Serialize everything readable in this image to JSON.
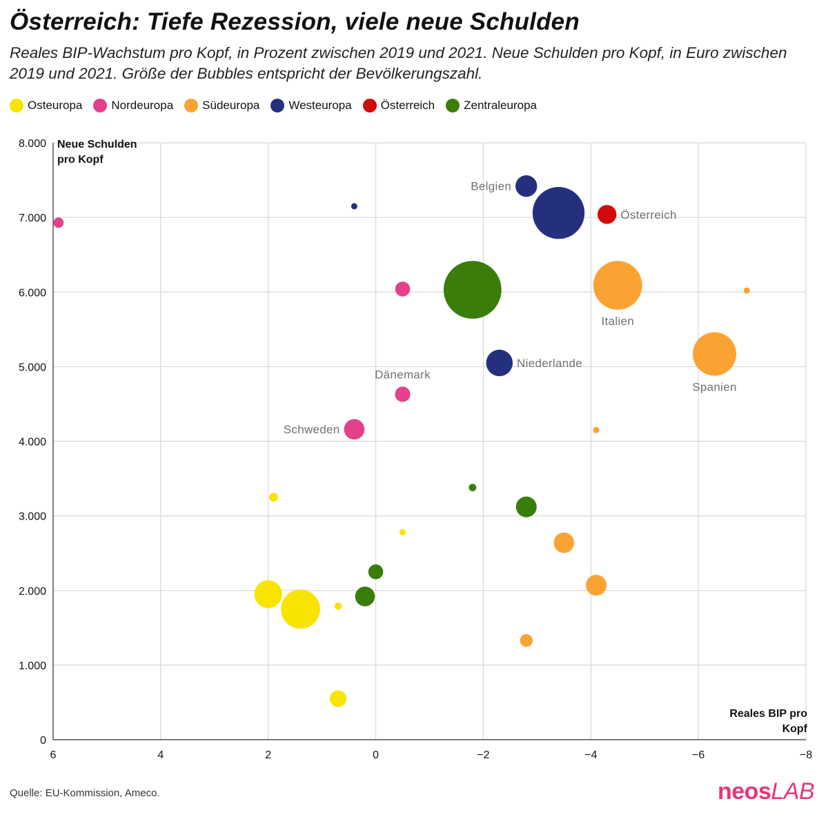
{
  "header": {
    "title": "Österreich: Tiefe Rezession, viele neue Schulden",
    "subtitle": "Reales BIP-Wachstum pro Kopf, in Prozent zwischen 2019 und 2021. Neue Schulden pro Kopf, in Euro zwischen 2019 und 2021. Größe der Bubbles entspricht der Bevölkerungszahl."
  },
  "legend": [
    {
      "name": "Osteuropa",
      "color": "#f7e400"
    },
    {
      "name": "Nordeuropa",
      "color": "#e5408a"
    },
    {
      "name": "Südeuropa",
      "color": "#fba332"
    },
    {
      "name": "Westeuropa",
      "color": "#24307e"
    },
    {
      "name": "Österreich",
      "color": "#d10a0a"
    },
    {
      "name": "Zentraleuropa",
      "color": "#3b7d0b"
    }
  ],
  "footer": {
    "source": "Quelle: EU-Kommission, Ameco.",
    "logo_neos": "neos",
    "logo_lab": "LAB"
  },
  "chart_data": {
    "type": "scatter",
    "title": "Österreich: Tiefe Rezession, viele neue Schulden",
    "xlabel": "Reales BIP pro Kopf",
    "ylabel": "Neue Schulden pro Kopf",
    "xlim": [
      6,
      -8
    ],
    "ylim": [
      0,
      8000
    ],
    "x_reversed": true,
    "x_ticks": [
      6,
      4,
      2,
      0,
      -2,
      -4,
      -6,
      -8
    ],
    "x_tick_labels": [
      "6",
      "4",
      "2",
      "0",
      "−2",
      "−4",
      "−6",
      "−8"
    ],
    "y_ticks": [
      0,
      1000,
      2000,
      3000,
      4000,
      5000,
      6000,
      7000,
      8000
    ],
    "y_tick_labels": [
      "0",
      "1.000",
      "2.000",
      "3.000",
      "4.000",
      "5.000",
      "6.000",
      "7.000",
      "8.000"
    ],
    "grid": true,
    "legend_position": "top-left",
    "size_encoding": "population (relative)",
    "points": [
      {
        "x": 5.9,
        "y": 6930,
        "size": 2.6,
        "group": "Nordeuropa",
        "label": ""
      },
      {
        "x": 0.4,
        "y": 7150,
        "size": 0.6,
        "group": "Westeuropa",
        "label": ""
      },
      {
        "x": -2.8,
        "y": 7420,
        "size": 11.6,
        "group": "Westeuropa",
        "label": "Belgien"
      },
      {
        "x": -3.4,
        "y": 7060,
        "size": 67,
        "group": "Westeuropa",
        "label": ""
      },
      {
        "x": -4.3,
        "y": 7040,
        "size": 8.9,
        "group": "Österreich",
        "label": "Österreich"
      },
      {
        "x": -0.5,
        "y": 6040,
        "size": 5.5,
        "group": "Nordeuropa",
        "label": ""
      },
      {
        "x": -1.8,
        "y": 6030,
        "size": 83,
        "group": "Zentraleuropa",
        "label": ""
      },
      {
        "x": -4.5,
        "y": 6090,
        "size": 59,
        "group": "Südeuropa",
        "label": "Italien"
      },
      {
        "x": -6.9,
        "y": 6020,
        "size": 0.5,
        "group": "Südeuropa",
        "label": ""
      },
      {
        "x": -2.3,
        "y": 5050,
        "size": 17.5,
        "group": "Westeuropa",
        "label": "Niederlande"
      },
      {
        "x": -6.3,
        "y": 5170,
        "size": 47,
        "group": "Südeuropa",
        "label": "Spanien"
      },
      {
        "x": -0.5,
        "y": 4630,
        "size": 5.8,
        "group": "Nordeuropa",
        "label": "Dänemark"
      },
      {
        "x": 0.4,
        "y": 4160,
        "size": 10.4,
        "group": "Nordeuropa",
        "label": "Schweden"
      },
      {
        "x": -4.1,
        "y": 4150,
        "size": 0.9,
        "group": "Südeuropa",
        "label": ""
      },
      {
        "x": 1.9,
        "y": 3250,
        "size": 1.9,
        "group": "Osteuropa",
        "label": ""
      },
      {
        "x": -1.8,
        "y": 3380,
        "size": 1.4,
        "group": "Zentraleuropa",
        "label": ""
      },
      {
        "x": -2.8,
        "y": 3120,
        "size": 10.7,
        "group": "Zentraleuropa",
        "label": ""
      },
      {
        "x": -0.5,
        "y": 2780,
        "size": 1.0,
        "group": "Osteuropa",
        "label": ""
      },
      {
        "x": -3.5,
        "y": 2640,
        "size": 10.3,
        "group": "Südeuropa",
        "label": ""
      },
      {
        "x": 0.0,
        "y": 2250,
        "size": 5.5,
        "group": "Zentraleuropa",
        "label": ""
      },
      {
        "x": -4.1,
        "y": 2070,
        "size": 10.7,
        "group": "Südeuropa",
        "label": ""
      },
      {
        "x": 2.0,
        "y": 1950,
        "size": 19.2,
        "group": "Osteuropa",
        "label": ""
      },
      {
        "x": 0.2,
        "y": 1920,
        "size": 9.7,
        "group": "Zentraleuropa",
        "label": ""
      },
      {
        "x": 1.4,
        "y": 1750,
        "size": 38,
        "group": "Osteuropa",
        "label": ""
      },
      {
        "x": 0.7,
        "y": 1790,
        "size": 1.3,
        "group": "Osteuropa",
        "label": ""
      },
      {
        "x": -2.8,
        "y": 1330,
        "size": 4.0,
        "group": "Südeuropa",
        "label": ""
      },
      {
        "x": 0.7,
        "y": 550,
        "size": 6.9,
        "group": "Osteuropa",
        "label": ""
      }
    ]
  }
}
